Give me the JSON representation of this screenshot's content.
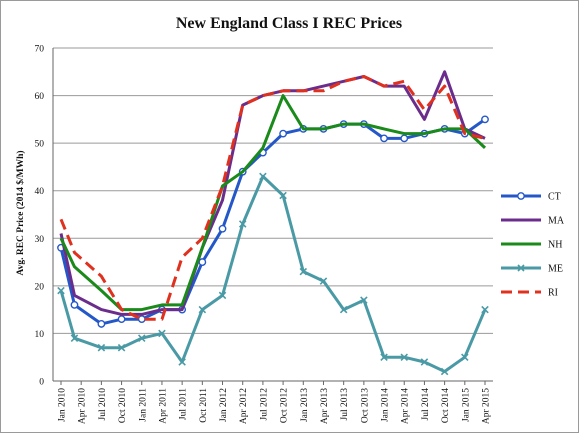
{
  "chart_data": {
    "type": "line",
    "title": "New England Class I REC Prices",
    "ylabel": "Avg. REC Price (2014 $/MWh)",
    "xlabel": "",
    "ylim": [
      0,
      70
    ],
    "yticks": [
      0,
      10,
      20,
      30,
      40,
      50,
      60,
      70
    ],
    "grid": "horizontal",
    "legend_position": "right",
    "categories": [
      "Jan 2010",
      "Apr 2010",
      "Jul 2010",
      "Oct 2010",
      "Jan 2011",
      "Apr 2011",
      "Jul 2011",
      "Oct 2011",
      "Jan 2012",
      "Apr 2012",
      "Jul 2012",
      "Oct 2012",
      "Jan 2013",
      "Apr 2013",
      "Jul 2013",
      "Oct 2013",
      "Jan 2014",
      "Apr 2014",
      "Jul 2014",
      "Oct 2014",
      "Jan 2015",
      "Apr 2015"
    ],
    "x": [
      "Jan 2010",
      "Feb 2010",
      "Mar 2010",
      "Apr 2010",
      "May 2010",
      "Jun 2010",
      "Jul 2010",
      "Aug 2010",
      "Sep 2010",
      "Oct 2010",
      "Nov 2010",
      "Dec 2010",
      "Jan 2011",
      "Feb 2011",
      "Mar 2011",
      "Apr 2011",
      "May 2011",
      "Jun 2011",
      "Jul 2011",
      "Aug 2011",
      "Sep 2011",
      "Oct 2011",
      "Nov 2011",
      "Dec 2011",
      "Jan 2012",
      "Feb 2012",
      "Mar 2012",
      "Apr 2012",
      "May 2012",
      "Jun 2012",
      "Jul 2012",
      "Aug 2012",
      "Sep 2012",
      "Oct 2012",
      "Nov 2012",
      "Dec 2012",
      "Jan 2013",
      "Feb 2013",
      "Mar 2013",
      "Apr 2013",
      "May 2013",
      "Jun 2013",
      "Jul 2013",
      "Aug 2013",
      "Sep 2013",
      "Oct 2013",
      "Nov 2013",
      "Dec 2013",
      "Jan 2014",
      "Feb 2014",
      "Mar 2014",
      "Apr 2014",
      "May 2014",
      "Jun 2014",
      "Jul 2014",
      "Aug 2014",
      "Sep 2014",
      "Oct 2014",
      "Nov 2014",
      "Dec 2014",
      "Jan 2015",
      "Feb 2015",
      "Mar 2015",
      "Apr 2015"
    ],
    "series": [
      {
        "name": "CT",
        "color": "#2457c8",
        "style": "solid",
        "marker": "circle",
        "points": [
          [
            "Jan 2010",
            28
          ],
          [
            "Mar 2010",
            16
          ],
          [
            "Jul 2010",
            12
          ],
          [
            "Oct 2010",
            13
          ],
          [
            "Jan 2011",
            13
          ],
          [
            "Apr 2011",
            15
          ],
          [
            "Jul 2011",
            15
          ],
          [
            "Oct 2011",
            25
          ],
          [
            "Jan 2012",
            32
          ],
          [
            "Apr 2012",
            44
          ],
          [
            "Jul 2012",
            48
          ],
          [
            "Oct 2012",
            52
          ],
          [
            "Jan 2013",
            53
          ],
          [
            "Apr 2013",
            53
          ],
          [
            "Jul 2013",
            54
          ],
          [
            "Oct 2013",
            54
          ],
          [
            "Jan 2014",
            51
          ],
          [
            "Apr 2014",
            51
          ],
          [
            "Jul 2014",
            52
          ],
          [
            "Oct 2014",
            53
          ],
          [
            "Jan 2015",
            52
          ],
          [
            "Apr 2015",
            55
          ]
        ]
      },
      {
        "name": "MA",
        "color": "#6b2d8c",
        "style": "solid",
        "marker": "none",
        "points": [
          [
            "Jan 2010",
            31
          ],
          [
            "Mar 2010",
            18
          ],
          [
            "Jul 2010",
            15
          ],
          [
            "Oct 2010",
            14
          ],
          [
            "Jan 2011",
            14
          ],
          [
            "Apr 2011",
            15
          ],
          [
            "Jul 2011",
            15
          ],
          [
            "Oct 2011",
            28
          ],
          [
            "Jan 2012",
            38
          ],
          [
            "Apr 2012",
            58
          ],
          [
            "Jul 2012",
            60
          ],
          [
            "Oct 2012",
            61
          ],
          [
            "Jan 2013",
            61
          ],
          [
            "Apr 2013",
            62
          ],
          [
            "Jul 2013",
            63
          ],
          [
            "Oct 2013",
            64
          ],
          [
            "Jan 2014",
            62
          ],
          [
            "Apr 2014",
            62
          ],
          [
            "Jul 2014",
            55
          ],
          [
            "Oct 2014",
            65
          ],
          [
            "Jan 2015",
            53
          ],
          [
            "Apr 2015",
            51
          ]
        ]
      },
      {
        "name": "NH",
        "color": "#1a8a1a",
        "style": "solid",
        "marker": "none",
        "points": [
          [
            "Jan 2010",
            30
          ],
          [
            "Mar 2010",
            24
          ],
          [
            "Jul 2010",
            19
          ],
          [
            "Oct 2010",
            15
          ],
          [
            "Jan 2011",
            15
          ],
          [
            "Apr 2011",
            16
          ],
          [
            "Jul 2011",
            16
          ],
          [
            "Oct 2011",
            28
          ],
          [
            "Jan 2012",
            41
          ],
          [
            "Apr 2012",
            44
          ],
          [
            "Jul 2012",
            49
          ],
          [
            "Oct 2012",
            60
          ],
          [
            "Jan 2013",
            53
          ],
          [
            "Apr 2013",
            53
          ],
          [
            "Jul 2013",
            54
          ],
          [
            "Oct 2013",
            54
          ],
          [
            "Jan 2014",
            53
          ],
          [
            "Apr 2014",
            52
          ],
          [
            "Jul 2014",
            52
          ],
          [
            "Oct 2014",
            53
          ],
          [
            "Jan 2015",
            53
          ],
          [
            "Apr 2015",
            49
          ]
        ]
      },
      {
        "name": "ME",
        "color": "#4a9aa6",
        "style": "solid",
        "marker": "x",
        "points": [
          [
            "Jan 2010",
            19
          ],
          [
            "Mar 2010",
            9
          ],
          [
            "Jul 2010",
            7
          ],
          [
            "Oct 2010",
            7
          ],
          [
            "Jan 2011",
            9
          ],
          [
            "Apr 2011",
            10
          ],
          [
            "Jul 2011",
            4
          ],
          [
            "Oct 2011",
            15
          ],
          [
            "Jan 2012",
            18
          ],
          [
            "Apr 2012",
            33
          ],
          [
            "Jul 2012",
            43
          ],
          [
            "Oct 2012",
            39
          ],
          [
            "Jan 2013",
            23
          ],
          [
            "Apr 2013",
            21
          ],
          [
            "Jul 2013",
            15
          ],
          [
            "Oct 2013",
            17
          ],
          [
            "Jan 2014",
            5
          ],
          [
            "Apr 2014",
            5
          ],
          [
            "Jul 2014",
            4
          ],
          [
            "Oct 2014",
            2
          ],
          [
            "Jan 2015",
            5
          ],
          [
            "Apr 2015",
            15
          ]
        ]
      },
      {
        "name": "RI",
        "color": "#e0301e",
        "style": "dashed",
        "marker": "none",
        "points": [
          [
            "Jan 2010",
            34
          ],
          [
            "Mar 2010",
            27
          ],
          [
            "Jul 2010",
            22
          ],
          [
            "Oct 2010",
            15
          ],
          [
            "Jan 2011",
            13
          ],
          [
            "Apr 2011",
            13
          ],
          [
            "Jul 2011",
            26
          ],
          [
            "Oct 2011",
            30
          ],
          [
            "Jan 2012",
            41
          ],
          [
            "Apr 2012",
            58
          ],
          [
            "Jul 2012",
            60
          ],
          [
            "Oct 2012",
            61
          ],
          [
            "Jan 2013",
            61
          ],
          [
            "Apr 2013",
            61
          ],
          [
            "Jul 2013",
            63
          ],
          [
            "Oct 2013",
            64
          ],
          [
            "Jan 2014",
            62
          ],
          [
            "Apr 2014",
            63
          ],
          [
            "Jul 2014",
            57
          ],
          [
            "Oct 2014",
            62
          ],
          [
            "Jan 2015",
            52
          ],
          [
            "Apr 2015",
            51
          ]
        ]
      }
    ]
  }
}
